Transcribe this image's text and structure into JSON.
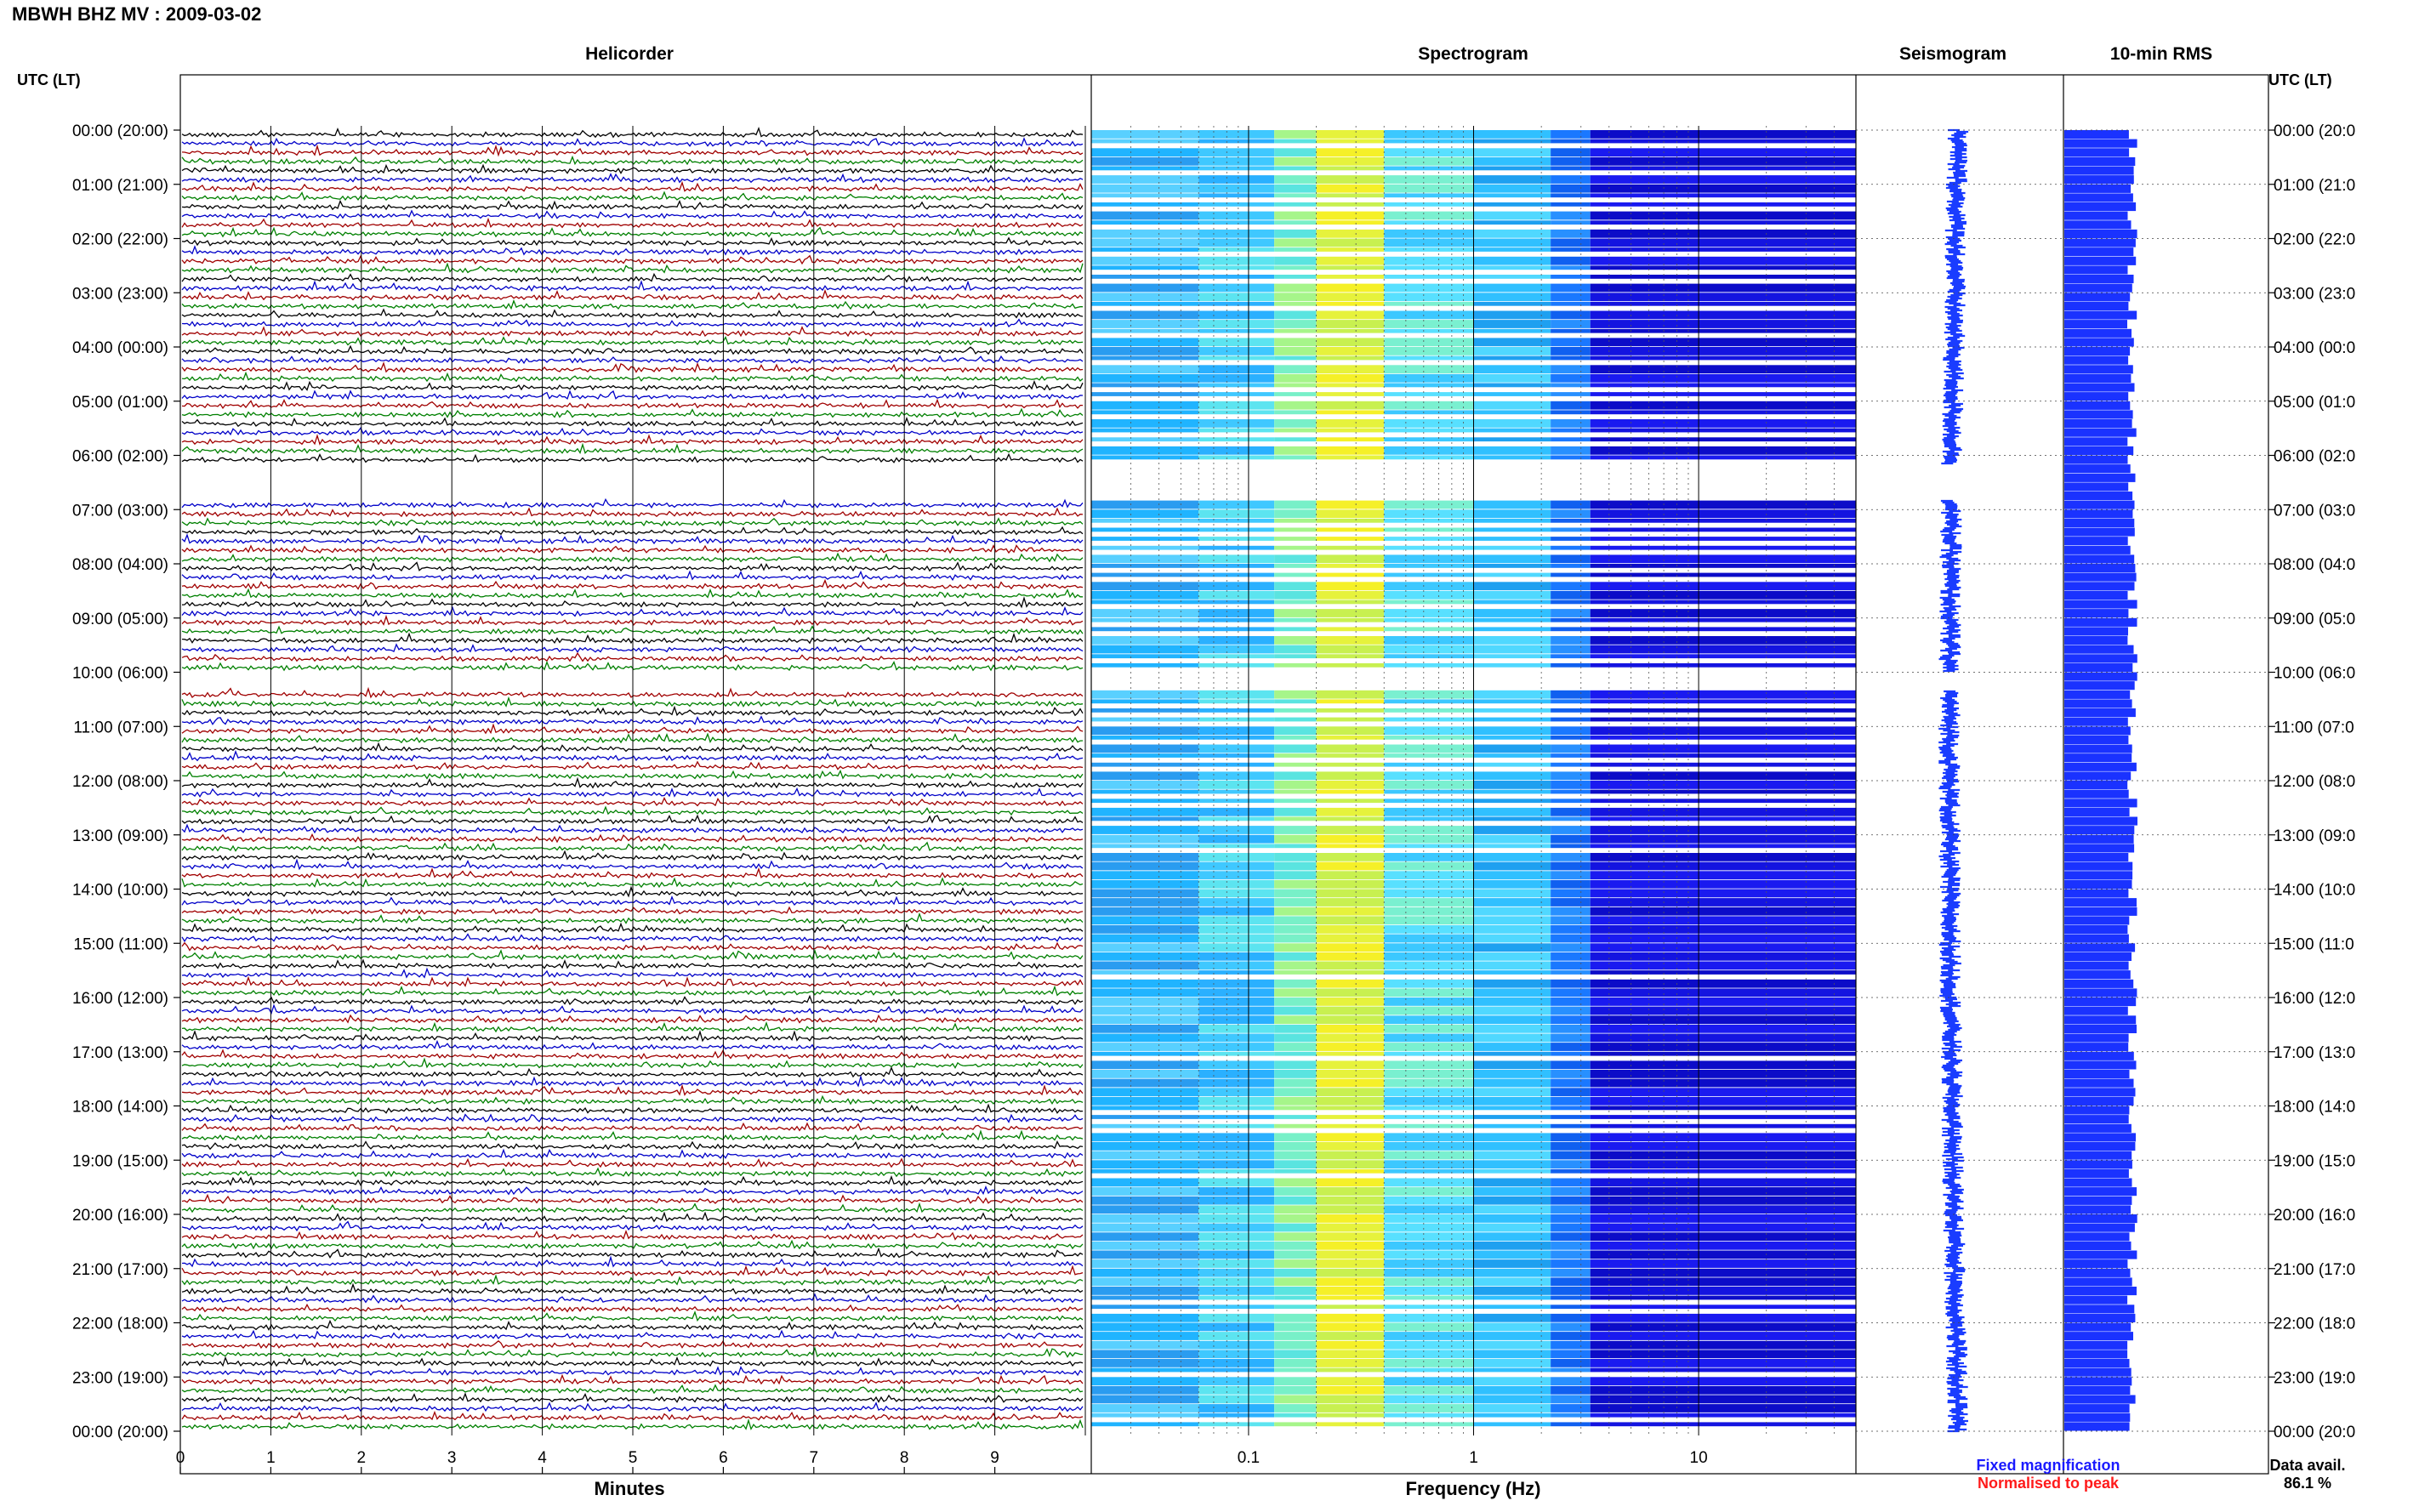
{
  "header": {
    "station_title": "MBWH BHZ MV : 2009-03-02",
    "utc_label_left": "UTC (LT)",
    "utc_label_right": "UTC (LT)"
  },
  "panels": {
    "helicorder": "Helicorder",
    "spectrogram": "Spectrogram",
    "seismogram": "Seismogram",
    "rms": "10-min RMS"
  },
  "footer": {
    "fixed_magnification": "Fixed magnification",
    "normalised_to_peak": "Normalised to peak",
    "data_avail_label": "Data avail.",
    "data_avail_value": "86.1 %"
  },
  "colors": {
    "trace_black": "#000000",
    "trace_blue": "#0000c8",
    "trace_red": "#a00000",
    "trace_green": "#008000",
    "seismo_blue": "#1a3cff",
    "rms_blue": "#1a32ff",
    "fixed_mag_text": "#1a1aff",
    "normalised_text": "#ff1a1a"
  },
  "chart_data": [
    {
      "type": "line",
      "title": "Helicorder",
      "xlabel": "Minutes",
      "xlim": [
        0,
        10
      ],
      "x_ticks": [
        "0",
        "1",
        "2",
        "3",
        "4",
        "5",
        "6",
        "7",
        "8",
        "9"
      ],
      "row_count": 144,
      "row_minutes": 10,
      "y_tick_labels_left": [
        "00:00 (20:00)",
        "01:00 (21:00)",
        "02:00 (22:00)",
        "03:00 (23:00)",
        "04:00 (00:00)",
        "05:00 (01:00)",
        "06:00 (02:00)",
        "07:00 (03:00)",
        "08:00 (04:00)",
        "09:00 (05:00)",
        "10:00 (06:00)",
        "11:00 (07:00)",
        "12:00 (08:00)",
        "13:00 (09:00)",
        "14:00 (10:00)",
        "15:00 (11:00)",
        "16:00 (12:00)",
        "17:00 (13:00)",
        "18:00 (14:00)",
        "19:00 (15:00)",
        "20:00 (16:00)",
        "21:00 (17:00)",
        "22:00 (18:00)",
        "23:00 (19:00)",
        "00:00 (20:00)"
      ],
      "y_tick_labels_right": [
        "00:00 (20:0",
        "01:00 (21:0",
        "02:00 (22:0",
        "03:00 (23:0",
        "04:00 (00:0",
        "05:00 (01:0",
        "06:00 (02:0",
        "07:00 (03:0",
        "08:00 (04:0",
        "09:00 (05:0",
        "10:00 (06:0",
        "11:00 (07:0",
        "12:00 (08:0",
        "13:00 (09:0",
        "14:00 (10:0",
        "15:00 (11:0",
        "16:00 (12:0",
        "17:00 (13:0",
        "18:00 (14:0",
        "19:00 (15:0",
        "20:00 (16:0",
        "21:00 (17:0",
        "22:00 (18:0",
        "23:00 (19:0",
        "00:00 (20:0"
      ],
      "series_colors": [
        "black",
        "blue",
        "red",
        "green"
      ],
      "gaps_utc": [
        [
          "06:10",
          "06:50"
        ],
        [
          "10:00",
          "10:20"
        ]
      ]
    },
    {
      "type": "heatmap",
      "title": "Spectrogram",
      "xlabel": "Frequency (Hz)",
      "x_scale": "log",
      "xlim": [
        0.02,
        50
      ],
      "x_ticks": [
        "0.1",
        "1",
        "10"
      ],
      "gaps_utc": [
        [
          "06:10",
          "06:50"
        ],
        [
          "10:00",
          "10:20"
        ]
      ]
    },
    {
      "type": "line",
      "title": "Seismogram",
      "note": "Fixed magnification"
    },
    {
      "type": "bar",
      "title": "10-min RMS",
      "orientation": "horizontal",
      "interval_minutes": 10,
      "bar_count": 144
    }
  ]
}
